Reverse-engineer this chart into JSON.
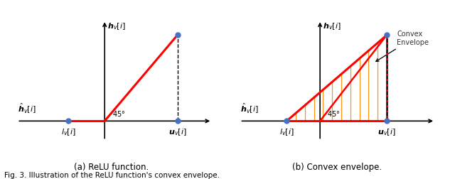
{
  "fig_width": 6.4,
  "fig_height": 2.52,
  "dpi": 100,
  "bg_color": "#ffffff",
  "red_color": "#ff0000",
  "blue_color": "#4472c4",
  "orange_hatch_color": "#ff8800",
  "axis_color": "#000000",
  "caption_left": "(a) ReLU function.",
  "caption_right": "(b) Convex envelope.",
  "bottom_caption": "Fig. 3. Illustration of the ReLU function's convex envelope.",
  "lv_x": -1.0,
  "uv_x": 2.0,
  "top_y": 2.0,
  "xlim_left": [
    -2.5,
    3.0
  ],
  "xlim_right": [
    -2.5,
    3.5
  ],
  "ylim": [
    -0.6,
    2.4
  ]
}
